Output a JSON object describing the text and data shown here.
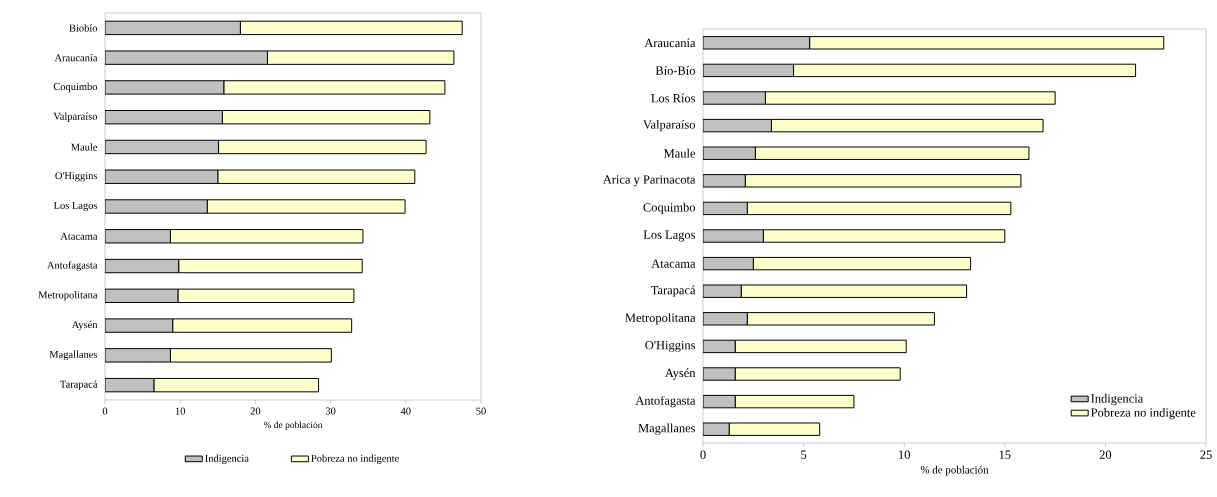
{
  "chart_data": [
    {
      "type": "bar",
      "orientation": "horizontal",
      "stacked": true,
      "categories": [
        "Biobío",
        "Araucanía",
        "Coquimbo",
        "Valparaíso",
        "Maule",
        "O'Higgins",
        "Los Lagos",
        "Atacama",
        "Antofagasta",
        "Metropolitana",
        "Aysén",
        "Magallanes",
        "Tarapacá"
      ],
      "series": [
        {
          "name": "Indigencia",
          "color": "#c0c0c0",
          "values": [
            18.0,
            21.6,
            15.8,
            15.6,
            15.1,
            15.0,
            13.6,
            8.7,
            9.8,
            9.7,
            9.0,
            8.7,
            6.5
          ]
        },
        {
          "name": "Pobreza no indigente",
          "color": "#ffffcc",
          "values": [
            29.5,
            24.8,
            29.4,
            27.6,
            27.6,
            26.2,
            26.3,
            25.6,
            24.4,
            23.4,
            23.8,
            21.4,
            21.9
          ]
        }
      ],
      "xlabel": "% de población",
      "xlim": [
        0,
        50
      ],
      "xticks": [
        0,
        10,
        20,
        30,
        40,
        50
      ],
      "legend": "bottom"
    },
    {
      "type": "bar",
      "orientation": "horizontal",
      "stacked": true,
      "categories": [
        "Araucanía",
        "Bío-Bío",
        "Los Ríos",
        "Valparaíso",
        "Maule",
        "Arica y Parinacota",
        "Coquimbo",
        "Los Lagos",
        "Atacama",
        "Tarapacá",
        "Metropolitana",
        "O'Higgins",
        "Aysén",
        "Antofagasta",
        "Magallanes"
      ],
      "series": [
        {
          "name": "Indigencia",
          "color": "#c0c0c0",
          "values": [
            5.3,
            4.5,
            3.1,
            3.4,
            2.6,
            2.1,
            2.2,
            3.0,
            2.5,
            1.9,
            2.2,
            1.6,
            1.6,
            1.6,
            1.3
          ]
        },
        {
          "name": "Pobreza no indigente",
          "color": "#ffffcc",
          "values": [
            17.6,
            17.0,
            14.4,
            13.5,
            13.6,
            13.7,
            13.1,
            12.0,
            10.8,
            11.2,
            9.3,
            8.5,
            8.2,
            5.9,
            4.5
          ]
        }
      ],
      "xlabel": "% de población",
      "xlim": [
        0,
        25
      ],
      "xticks": [
        0,
        5,
        10,
        15,
        20,
        25
      ],
      "legend": "bottom right"
    }
  ]
}
